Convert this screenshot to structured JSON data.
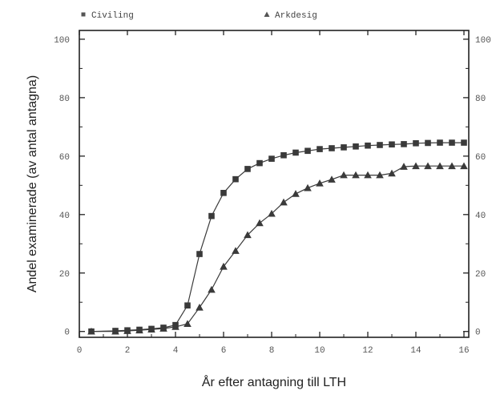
{
  "chart_data": {
    "type": "line",
    "xlabel": "År efter antagning till LTH",
    "ylabel": "Andel examinerade (av antal antagna)",
    "xlim": [
      0,
      16.2
    ],
    "ylim": [
      -2,
      103
    ],
    "x_ticks": [
      "0",
      "2",
      "4",
      "6",
      "8",
      "10",
      "12",
      "14",
      "16"
    ],
    "y_ticks": [
      "0",
      "20",
      "40",
      "60",
      "80",
      "100"
    ],
    "y_ticks_right": [
      "0",
      "20",
      "40",
      "60",
      "80",
      "100"
    ],
    "grid": false,
    "legend_position": "top",
    "series": [
      {
        "name": "Civiling",
        "marker": "square",
        "color": "#3a3a3a",
        "points": [
          [
            0.5,
            0
          ],
          [
            1.5,
            0.2
          ],
          [
            2,
            0.4
          ],
          [
            2.5,
            0.6
          ],
          [
            3,
            0.9
          ],
          [
            3.5,
            1.3
          ],
          [
            4,
            2.2
          ],
          [
            4.5,
            8.9
          ],
          [
            5,
            26.5
          ],
          [
            5.5,
            39.5
          ],
          [
            6,
            47.4
          ],
          [
            6.5,
            52.1
          ],
          [
            7,
            55.6
          ],
          [
            7.5,
            57.6
          ],
          [
            8,
            59.1
          ],
          [
            8.5,
            60.3
          ],
          [
            9,
            61.2
          ],
          [
            9.5,
            61.8
          ],
          [
            10,
            62.4
          ],
          [
            10.5,
            62.7
          ],
          [
            11,
            63
          ],
          [
            11.5,
            63.3
          ],
          [
            12,
            63.6
          ],
          [
            12.5,
            63.8
          ],
          [
            13,
            64
          ],
          [
            13.5,
            64.1
          ],
          [
            14,
            64.4
          ],
          [
            14.5,
            64.5
          ],
          [
            15,
            64.6
          ],
          [
            15.5,
            64.6
          ],
          [
            16,
            64.6
          ]
        ]
      },
      {
        "name": "Arkdesig",
        "marker": "triangle",
        "color": "#3a3a3a",
        "points": [
          [
            0.5,
            0
          ],
          [
            1.5,
            0
          ],
          [
            2,
            0.2
          ],
          [
            2.5,
            0.4
          ],
          [
            3,
            0.7
          ],
          [
            3.5,
            1
          ],
          [
            4,
            1.6
          ],
          [
            4.5,
            2.6
          ],
          [
            5,
            8.2
          ],
          [
            5.5,
            14.3
          ],
          [
            6,
            22.2
          ],
          [
            6.5,
            27.6
          ],
          [
            7,
            33
          ],
          [
            7.5,
            37.1
          ],
          [
            8,
            40.3
          ],
          [
            8.5,
            44.2
          ],
          [
            9,
            47.1
          ],
          [
            9.5,
            49.1
          ],
          [
            10,
            50.7
          ],
          [
            10.5,
            52
          ],
          [
            11,
            53.5
          ],
          [
            11.5,
            53.5
          ],
          [
            12,
            53.5
          ],
          [
            12.5,
            53.5
          ],
          [
            13,
            54.1
          ],
          [
            13.5,
            56.4
          ],
          [
            14,
            56.6
          ],
          [
            14.5,
            56.6
          ],
          [
            15,
            56.6
          ],
          [
            15.5,
            56.6
          ],
          [
            16,
            56.6
          ]
        ]
      }
    ]
  }
}
